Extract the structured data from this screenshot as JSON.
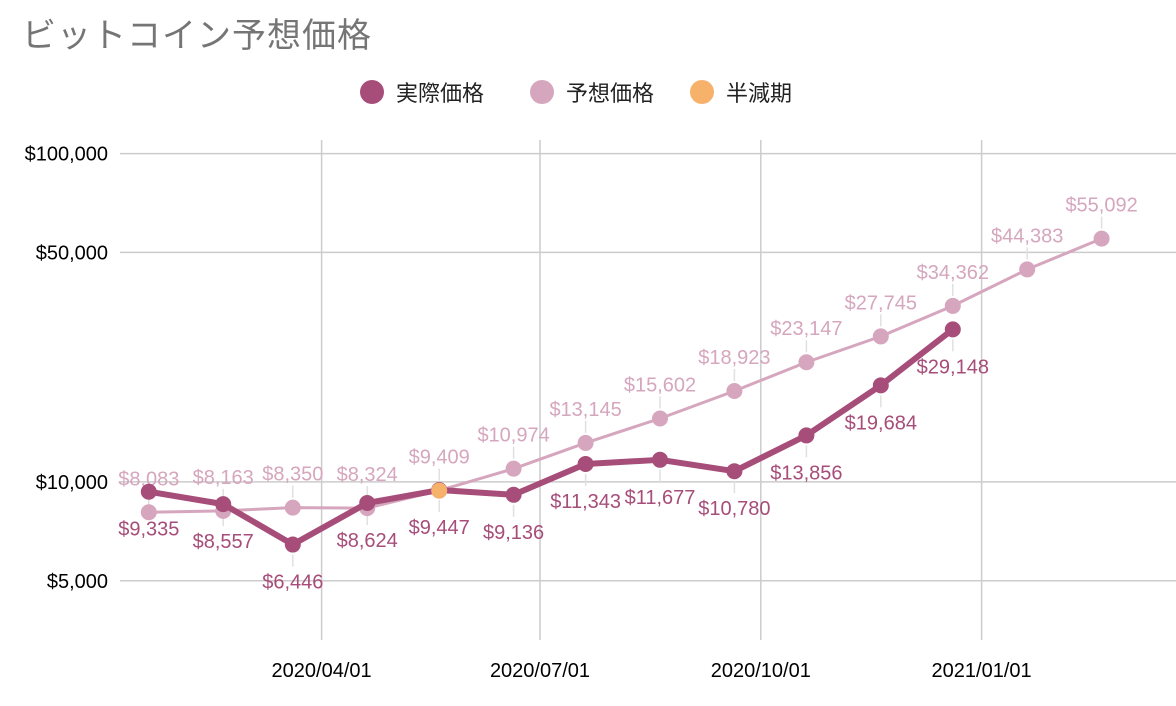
{
  "chart_data": {
    "type": "line",
    "title": "ビットコイン予想価格",
    "xlabel": "",
    "ylabel": "",
    "y_scale": "log",
    "ylim": [
      3300,
      110000
    ],
    "y_ticks": [
      5000,
      10000,
      50000,
      100000
    ],
    "y_tick_labels": [
      "$5,000",
      "$10,000",
      "$50,000",
      "$100,000"
    ],
    "x_ticks": [
      {
        "date": "2020-04-01",
        "label": "2020/04/01"
      },
      {
        "date": "2020-07-01",
        "label": "2020/07/01"
      },
      {
        "date": "2020-10-01",
        "label": "2020/10/01"
      },
      {
        "date": "2021-01-01",
        "label": "2021/01/01"
      }
    ],
    "xlim": [
      "2020-01-08",
      "2021-03-23"
    ],
    "grid": true,
    "legend_position": "top",
    "series": [
      {
        "name": "実際価格",
        "color": "#a64d79",
        "data": [
          {
            "x": "2020-01-20",
            "y": 9335,
            "label": "$9,335"
          },
          {
            "x": "2020-02-20",
            "y": 8557,
            "label": "$8,557"
          },
          {
            "x": "2020-03-20",
            "y": 6446,
            "label": "$6,446"
          },
          {
            "x": "2020-04-20",
            "y": 8624,
            "label": "$8,624"
          },
          {
            "x": "2020-05-20",
            "y": 9447,
            "label": "$9,447"
          },
          {
            "x": "2020-06-20",
            "y": 9136,
            "label": "$9,136"
          },
          {
            "x": "2020-07-20",
            "y": 11343,
            "label": "$11,343"
          },
          {
            "x": "2020-08-20",
            "y": 11677,
            "label": "$11,677"
          },
          {
            "x": "2020-09-20",
            "y": 10780,
            "label": "$10,780"
          },
          {
            "x": "2020-10-20",
            "y": 13856,
            "label": "$13,856"
          },
          {
            "x": "2020-11-20",
            "y": 19684,
            "label": "$19,684"
          },
          {
            "x": "2020-12-20",
            "y": 29148,
            "label": "$29,148"
          }
        ]
      },
      {
        "name": "予想価格",
        "color": "#d5a6bd",
        "data": [
          {
            "x": "2020-01-20",
            "y": 8083,
            "label": "$8,083"
          },
          {
            "x": "2020-02-20",
            "y": 8163,
            "label": "$8,163"
          },
          {
            "x": "2020-03-20",
            "y": 8350,
            "label": "$8,350"
          },
          {
            "x": "2020-04-20",
            "y": 8324,
            "label": "$8,324"
          },
          {
            "x": "2020-05-20",
            "y": 9409,
            "label": "$9,409"
          },
          {
            "x": "2020-06-20",
            "y": 10974,
            "label": "$10,974"
          },
          {
            "x": "2020-07-20",
            "y": 13145,
            "label": "$13,145"
          },
          {
            "x": "2020-08-20",
            "y": 15602,
            "label": "$15,602"
          },
          {
            "x": "2020-09-20",
            "y": 18923,
            "label": "$18,923"
          },
          {
            "x": "2020-10-20",
            "y": 23147,
            "label": "$23,147"
          },
          {
            "x": "2020-11-20",
            "y": 27745,
            "label": "$27,745"
          },
          {
            "x": "2020-12-20",
            "y": 34362,
            "label": "$34,362"
          },
          {
            "x": "2021-01-20",
            "y": 44383,
            "label": "$44,383"
          },
          {
            "x": "2021-02-20",
            "y": 55092,
            "label": "$55,092"
          }
        ]
      },
      {
        "name": "半減期",
        "color": "#f6b26b",
        "data": [
          {
            "x": "2020-05-20",
            "y": 9409
          }
        ]
      }
    ]
  }
}
